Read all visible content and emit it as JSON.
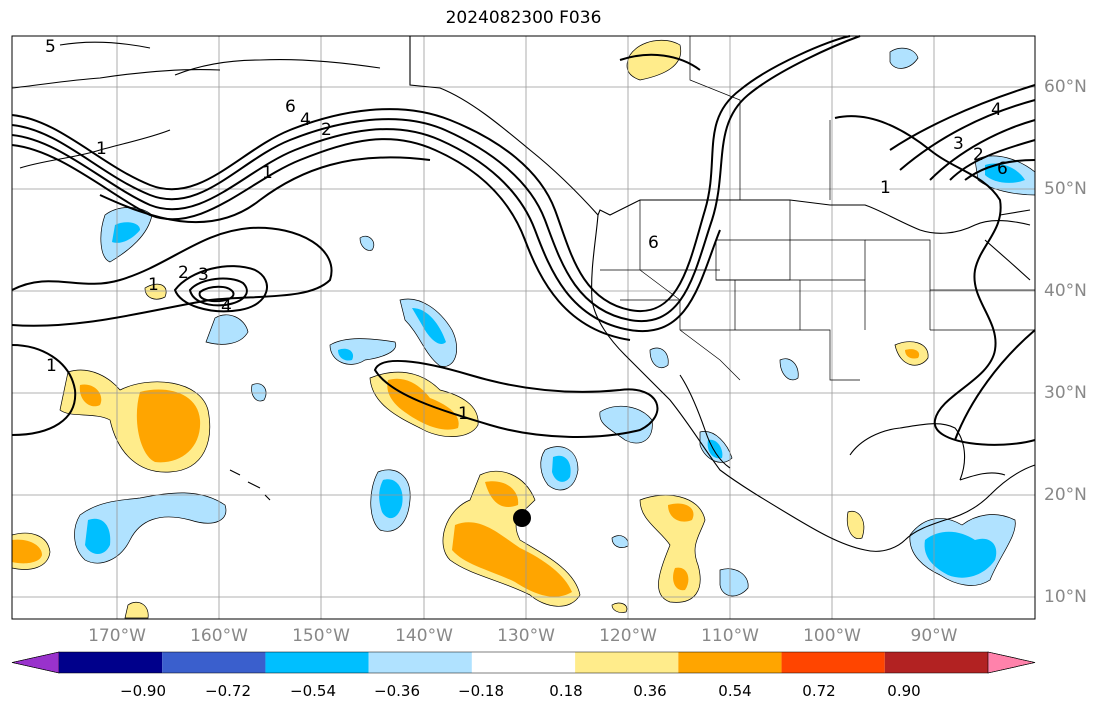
{
  "title": "2024082300 F036",
  "lat_labels": [
    "60°N",
    "50°N",
    "40°N",
    "30°N",
    "20°N",
    "10°N"
  ],
  "lon_labels": [
    "170°W",
    "160°W",
    "150°W",
    "140°W",
    "130°W",
    "120°W",
    "110°W",
    "100°W",
    "90°W"
  ],
  "colorbar": {
    "ticks": [
      "−0.90",
      "−0.72",
      "−0.54",
      "−0.36",
      "−0.18",
      "0.18",
      "0.36",
      "0.54",
      "0.72",
      "0.90"
    ],
    "colors": [
      "#9932cc",
      "#00008b",
      "#3a5fcd",
      "#00bfff",
      "#b0e2ff",
      "#ffffff",
      "#ffec8b",
      "#ffa500",
      "#ff4500",
      "#b22222",
      "#ff82ab"
    ]
  },
  "contour_labels": [
    "5",
    "1",
    "2",
    "1",
    "2",
    "3",
    "4",
    "1",
    "1",
    "6",
    "1",
    "3",
    "2",
    "6",
    "4",
    "6",
    "4"
  ]
}
